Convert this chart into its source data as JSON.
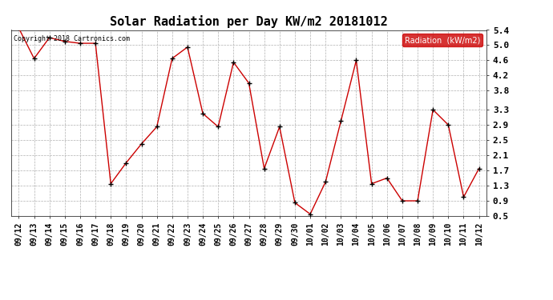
{
  "title": "Solar Radiation per Day KW/m2 20181012",
  "copyright_text": "Copyright 2018 Cartronics.com",
  "legend_label": "Radiation  (kW/m2)",
  "dates": [
    "09/12",
    "09/13",
    "09/14",
    "09/15",
    "09/16",
    "09/17",
    "09/18",
    "09/19",
    "09/20",
    "09/21",
    "09/22",
    "09/23",
    "09/24",
    "09/25",
    "09/26",
    "09/27",
    "09/28",
    "09/29",
    "09/30",
    "10/01",
    "10/02",
    "10/03",
    "10/04",
    "10/05",
    "10/06",
    "10/07",
    "10/08",
    "10/09",
    "10/10",
    "10/11",
    "10/12"
  ],
  "values": [
    5.45,
    4.65,
    5.2,
    5.1,
    5.05,
    5.05,
    1.35,
    1.9,
    2.4,
    2.85,
    4.65,
    4.95,
    3.2,
    2.85,
    4.55,
    4.0,
    1.75,
    2.85,
    0.85,
    0.55,
    1.4,
    3.0,
    4.6,
    1.35,
    1.5,
    0.9,
    0.9,
    3.3,
    2.9,
    1.0,
    1.75
  ],
  "line_color": "#cc0000",
  "marker_color": "#000000",
  "bg_color": "#ffffff",
  "grid_color": "#b0b0b0",
  "ylim": [
    0.5,
    5.4
  ],
  "yticks": [
    0.5,
    0.9,
    1.3,
    1.7,
    2.1,
    2.5,
    2.9,
    3.3,
    3.8,
    4.2,
    4.6,
    5.0,
    5.4
  ],
  "title_fontsize": 11,
  "tick_fontsize": 7,
  "legend_bg": "#cc0000",
  "legend_text_color": "#ffffff"
}
